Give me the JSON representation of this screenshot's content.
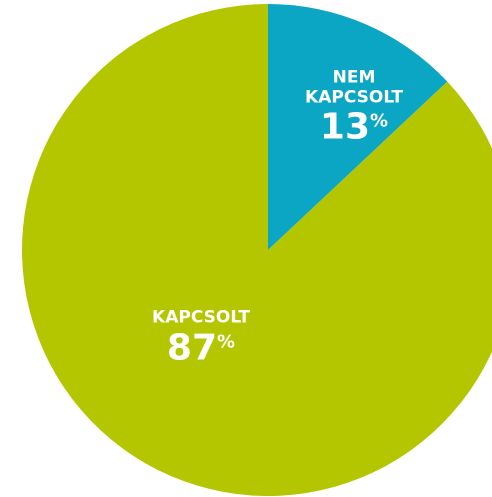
{
  "chart_data": {
    "type": "pie",
    "categories": [
      "NEM KAPCSOLT",
      "KAPCSOLT"
    ],
    "values": [
      13,
      87
    ],
    "unit": "%",
    "colors": [
      "#0ba6c4",
      "#b3c600"
    ]
  }
}
